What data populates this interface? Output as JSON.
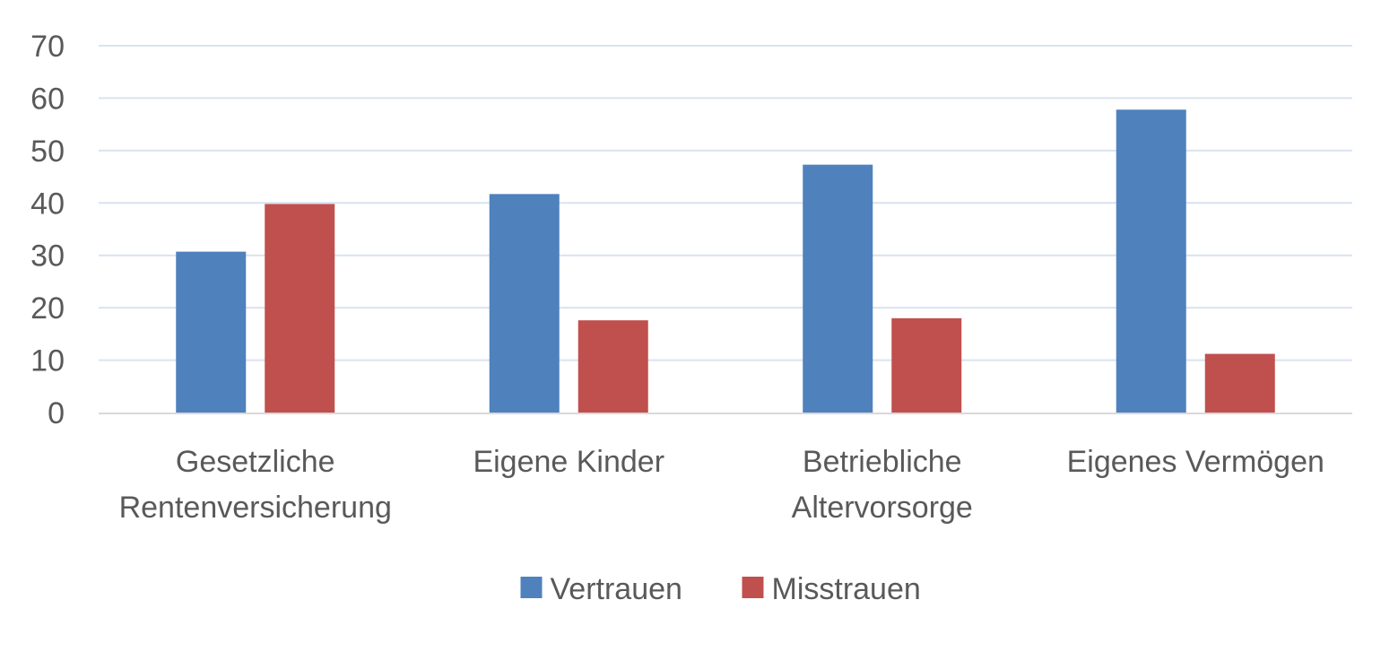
{
  "chart_data": {
    "type": "bar",
    "title": "",
    "xlabel": "",
    "ylabel": "",
    "categories": [
      [
        "Gesetzliche",
        "Rentenversicherung"
      ],
      [
        "Eigene Kinder"
      ],
      [
        "Betriebliche",
        "Altervorsorge"
      ],
      [
        "Eigenes Vermögen"
      ]
    ],
    "series": [
      {
        "name": "Vertrauen",
        "color": "#4F81BD",
        "values": [
          30.7,
          41.7,
          47.3,
          57.8
        ]
      },
      {
        "name": "Misstrauen",
        "color": "#C0504D",
        "values": [
          39.8,
          17.6,
          18.0,
          11.2
        ]
      }
    ],
    "ylim": [
      0,
      70
    ],
    "yticks": [
      "0",
      "10",
      "20",
      "30",
      "40",
      "50",
      "60",
      "70"
    ],
    "grid": true,
    "legend_position": "bottom"
  }
}
